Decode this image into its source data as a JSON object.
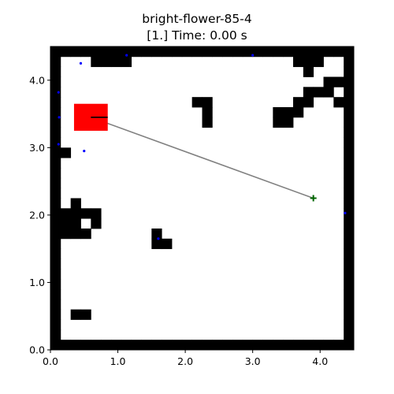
{
  "header": {
    "run_name": "bright-flower-85-4",
    "status_line": "[1.] Time: 0.00 s"
  },
  "chart_data": {
    "type": "scatter",
    "xlim": [
      0,
      4.5
    ],
    "ylim": [
      0,
      4.5
    ],
    "xticks": [
      "0.0",
      "1.0",
      "2.0",
      "3.0",
      "4.0"
    ],
    "yticks": [
      "0.0",
      "1.0",
      "2.0",
      "3.0",
      "4.0"
    ],
    "grid": false,
    "cell_size": 0.15,
    "occupancy_rows_top_to_bottom": [
      "111111111111111111111111111111",
      "100011110000000000000000111001",
      "100000000000000000000000010001",
      "100000000000000000000000000111",
      "100000000000000000000000011101",
      "100000000000001100000000110011",
      "100000000000000100000011100001",
      "100000000000000100000011000001",
      "100000000000000000000000000001",
      "100000000000000000000000000001",
      "110000000000000000000000000001",
      "100000000000000000000000000001",
      "100000000000000000000000000001",
      "100000000000000000000000000001",
      "100000000000000000000000000001",
      "101000000000000000000000000001",
      "111110000000000000000000000001",
      "111010000000000000000000000001",
      "111100000010000000000000000001",
      "100000000011000000000000000001",
      "100000000000000000000000000001",
      "100000000000000000000000000001",
      "100000000000000000000000000001",
      "100000000000000000000000000001",
      "100000000000000000000000000001",
      "100000000000000000000000000001",
      "101100000000000000000000000001",
      "100000000000000000000000000001",
      "100000000000000000000000000001",
      "111111111111111111111111111111"
    ],
    "agent_box": {
      "x": [
        0.35,
        0.85
      ],
      "y": [
        3.25,
        3.65
      ],
      "color": "#ff0000"
    },
    "agent_heading": {
      "x": [
        0.6,
        0.85
      ],
      "y": [
        3.45,
        3.45
      ]
    },
    "goal_line": {
      "x": [
        0.6,
        3.9
      ],
      "y": [
        3.45,
        2.25
      ],
      "color": "#808080"
    },
    "goal_marker": {
      "x": 3.9,
      "y": 2.25,
      "symbol": "+",
      "color": "#006400"
    },
    "blue_points": [
      {
        "x": 0.45,
        "y": 4.25
      },
      {
        "x": 1.13,
        "y": 4.37
      },
      {
        "x": 3.0,
        "y": 4.37
      },
      {
        "x": 0.12,
        "y": 3.82
      },
      {
        "x": 0.13,
        "y": 3.45
      },
      {
        "x": 0.12,
        "y": 3.05
      },
      {
        "x": 0.5,
        "y": 2.95
      },
      {
        "x": 4.37,
        "y": 2.03
      },
      {
        "x": 1.6,
        "y": 1.65
      }
    ]
  }
}
